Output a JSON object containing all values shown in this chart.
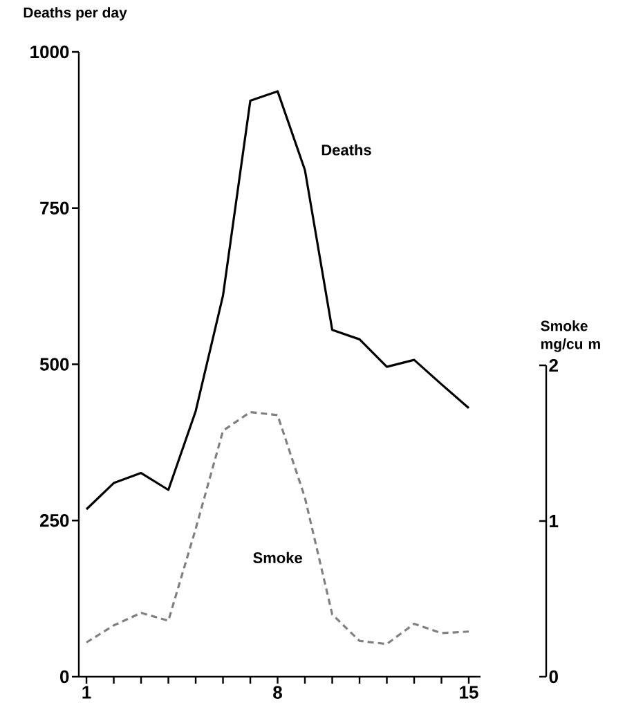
{
  "chart_data": {
    "type": "line",
    "ylabel": "Deaths per day",
    "y2label": "Smoke mg/cu m",
    "x": [
      1,
      2,
      3,
      4,
      5,
      6,
      7,
      8,
      9,
      10,
      11,
      12,
      13,
      14,
      15
    ],
    "xlim": [
      0.72,
      15.43
    ],
    "xticks": [
      1,
      {
        "value": 2,
        "label": null
      },
      {
        "value": 3,
        "label": null
      },
      {
        "value": 4,
        "label": null
      },
      {
        "value": 5,
        "label": null
      },
      {
        "value": 6,
        "label": null
      },
      {
        "value": 7,
        "label": null
      },
      8,
      {
        "value": 9,
        "label": null
      },
      {
        "value": 10,
        "label": null
      },
      {
        "value": 11,
        "label": null
      },
      {
        "value": 12,
        "label": null
      },
      {
        "value": 13,
        "label": null
      },
      {
        "value": 14,
        "label": null
      },
      15
    ],
    "ylim": [
      0,
      1000
    ],
    "yticks": [
      0,
      250,
      500,
      750,
      1000
    ],
    "y2lim": [
      0,
      2
    ],
    "y2ticks": [
      0,
      1,
      2
    ],
    "series": [
      {
        "name": "Deaths",
        "color": "#000000",
        "line_style": "solid",
        "values": [
          268,
          310,
          326,
          299,
          425,
          610,
          922,
          937,
          811,
          555,
          540,
          496,
          507,
          468,
          430
        ]
      },
      {
        "name": "Smoke",
        "color": "#808080",
        "line_style": "dashed",
        "axis": "y2",
        "values": [
          0.22,
          0.33,
          0.41,
          0.36,
          0.95,
          1.58,
          1.7,
          1.68,
          1.15,
          0.4,
          0.23,
          0.21,
          0.34,
          0.28,
          0.29
        ]
      }
    ],
    "grid": false,
    "legend": false,
    "marker": "none"
  }
}
